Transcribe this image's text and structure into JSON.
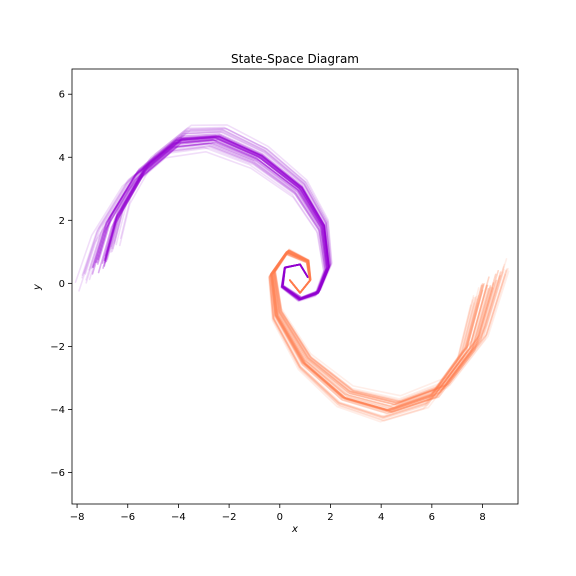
{
  "chart_data": {
    "type": "line",
    "title": "State-Space Diagram",
    "xlabel": "x",
    "ylabel": "y",
    "xlim": [
      -8.2,
      9.4
    ],
    "ylim": [
      -7.0,
      6.8
    ],
    "xticks": [
      -8,
      -6,
      -4,
      -2,
      0,
      2,
      4,
      6,
      8
    ],
    "yticks": [
      -6,
      -4,
      -2,
      0,
      2,
      4,
      6
    ],
    "xtick_labels": [
      "−8",
      "−6",
      "−4",
      "−2",
      "0",
      "2",
      "4",
      "6",
      "8"
    ],
    "ytick_labels": [
      "−6",
      "−4",
      "−2",
      "0",
      "2",
      "4",
      "6"
    ],
    "grid": false,
    "series": [
      {
        "color": "#9400d3",
        "trajectories": 40,
        "centerline": [
          [
            -7.1,
            0.6
          ],
          [
            -6.6,
            2.0
          ],
          [
            -5.5,
            3.5
          ],
          [
            -4.0,
            4.5
          ],
          [
            -2.5,
            4.6
          ],
          [
            -0.8,
            4.0
          ],
          [
            0.8,
            3.0
          ],
          [
            1.7,
            1.8
          ],
          [
            1.9,
            0.5
          ],
          [
            1.5,
            -0.3
          ],
          [
            0.8,
            -0.5
          ],
          [
            0.1,
            -0.1
          ],
          [
            0.2,
            0.5
          ],
          [
            0.8,
            0.6
          ],
          [
            1.1,
            0.2
          ]
        ]
      },
      {
        "color": "#ff7f50",
        "trajectories": 40,
        "centerline": [
          [
            8.3,
            0.0
          ],
          [
            7.6,
            -2.0
          ],
          [
            6.2,
            -3.5
          ],
          [
            4.4,
            -4.0
          ],
          [
            2.6,
            -3.6
          ],
          [
            1.0,
            -2.5
          ],
          [
            -0.1,
            -1.0
          ],
          [
            -0.3,
            0.3
          ],
          [
            0.3,
            1.0
          ],
          [
            1.1,
            0.7
          ],
          [
            1.2,
            0.1
          ],
          [
            0.8,
            -0.3
          ],
          [
            0.4,
            0.1
          ]
        ]
      }
    ]
  }
}
